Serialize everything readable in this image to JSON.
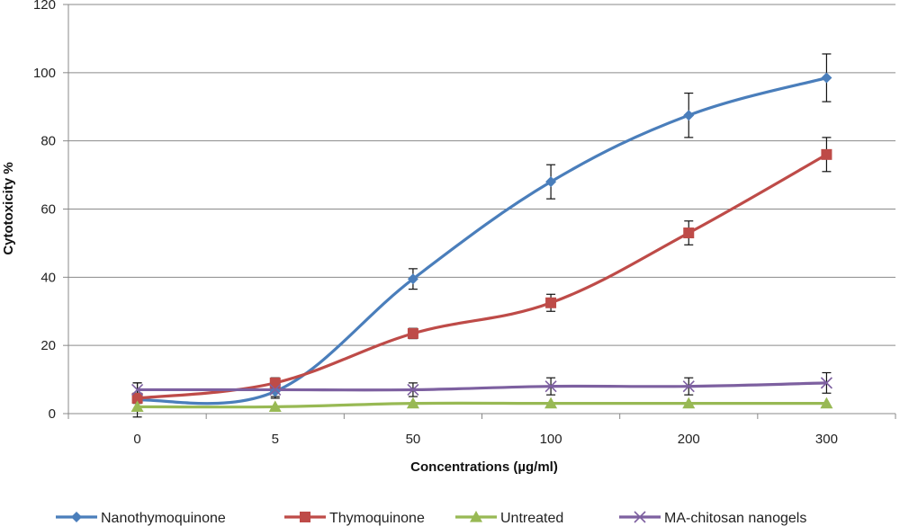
{
  "chart_data": {
    "type": "line",
    "title": "",
    "xlabel": "Concentrations (µg/ml)",
    "ylabel": "Cytotoxicity %",
    "categories": [
      "0",
      "5",
      "50",
      "100",
      "200",
      "300"
    ],
    "ylim": [
      0,
      120
    ],
    "yticks": [
      0,
      20,
      40,
      60,
      80,
      100,
      120
    ],
    "grid": true,
    "legend": "bottom",
    "series": [
      {
        "name": "Nanothymoquinone",
        "color": "#4a7ebb",
        "marker": "diamond",
        "values": [
          4,
          6.5,
          39.5,
          68,
          87.5,
          98.5
        ],
        "errors": [
          5,
          2,
          3,
          5,
          6.5,
          7
        ]
      },
      {
        "name": "Thymoquinone",
        "color": "#be4b48",
        "marker": "square",
        "values": [
          4.5,
          9,
          23.5,
          32.5,
          53,
          76
        ],
        "errors": [
          1.5,
          1.5,
          1.5,
          2.5,
          3.5,
          5
        ]
      },
      {
        "name": "Untreated",
        "color": "#98b954",
        "marker": "triangle",
        "values": [
          2,
          2,
          3,
          3,
          3,
          3
        ],
        "errors": [
          0,
          0,
          0,
          0,
          0,
          0
        ]
      },
      {
        "name": "MA-chitosan nanogels",
        "color": "#7d60a0",
        "marker": "x",
        "values": [
          7,
          7,
          7,
          8,
          8,
          9
        ],
        "errors": [
          2,
          2,
          2,
          2.5,
          2.5,
          3
        ]
      }
    ]
  }
}
